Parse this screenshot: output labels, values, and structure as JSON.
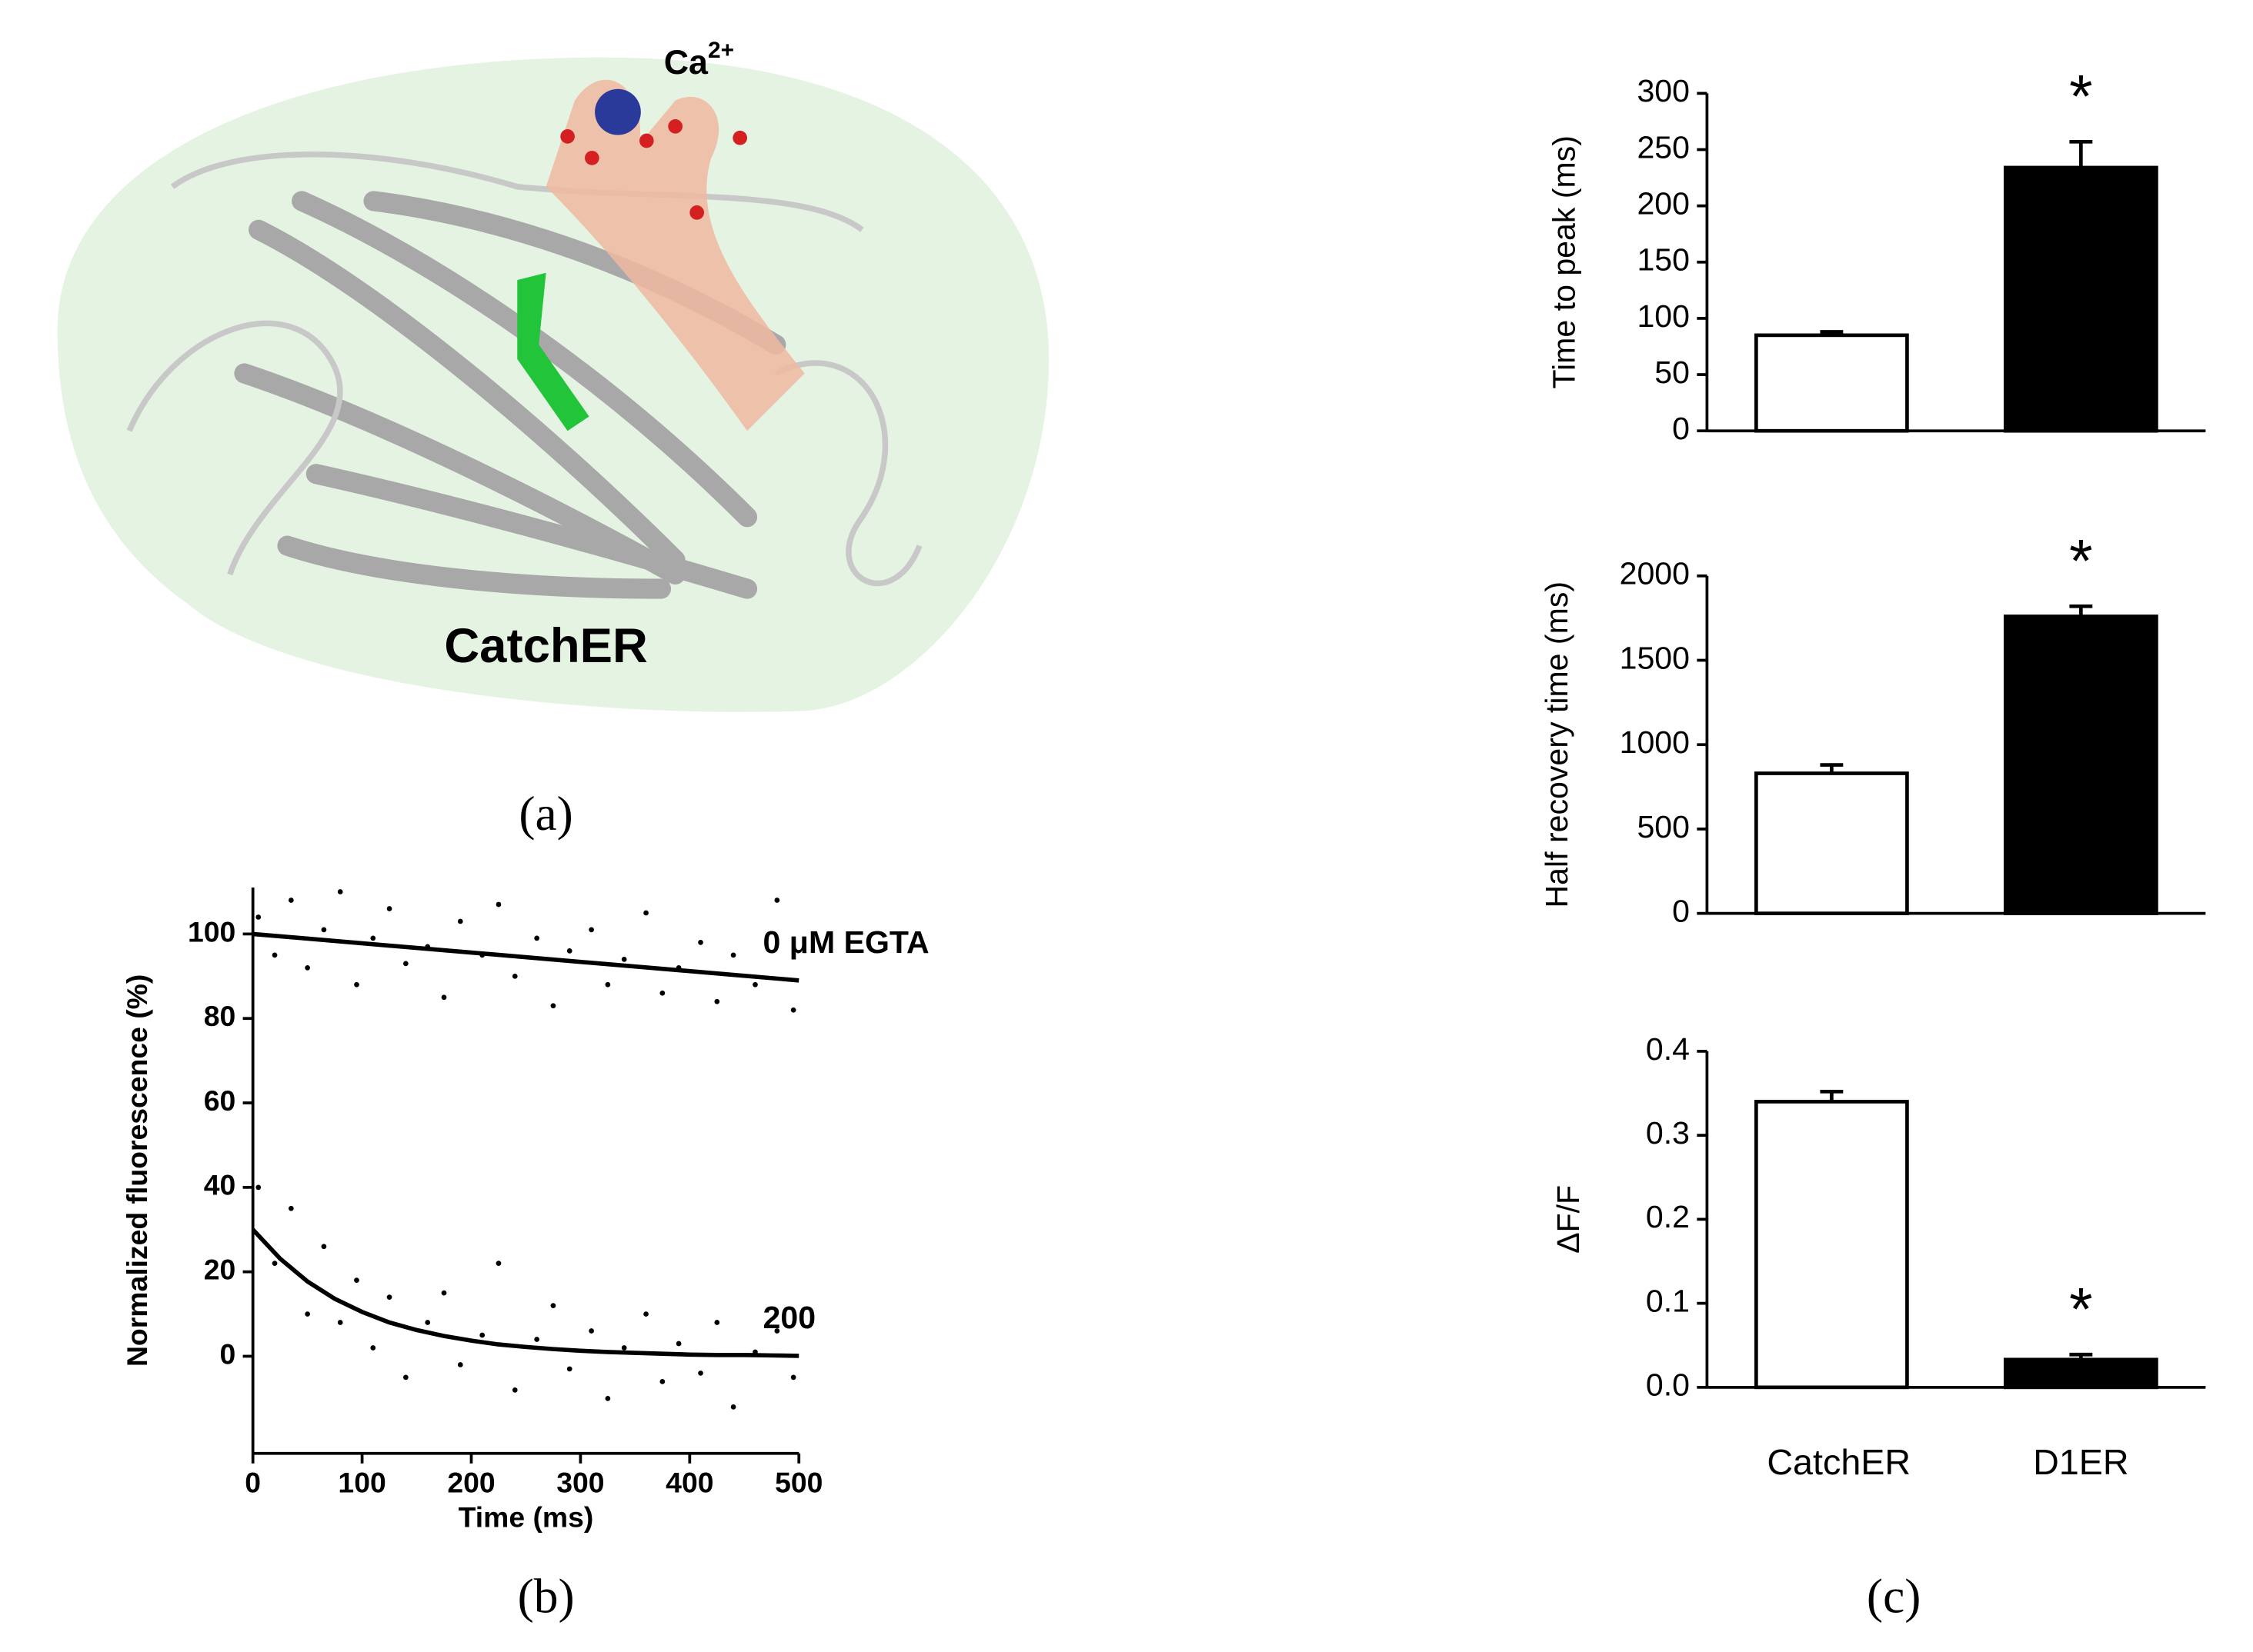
{
  "panel_labels": [
    "(a)",
    "(b)",
    "(c)"
  ],
  "structure": {
    "ion": "Ca",
    "ion_charge": "2+",
    "name": "CatchER"
  },
  "chart_data": [
    {
      "type": "scatter",
      "xlabel": "Time (ms)",
      "ylabel": "Normalized fluorescence (%)",
      "xlim": [
        0,
        500
      ],
      "xticks": [
        0,
        100,
        200,
        300,
        400,
        500
      ],
      "ylim": [
        -23,
        111
      ],
      "yticks": [
        0,
        20,
        40,
        60,
        80,
        100
      ],
      "series": [
        {
          "mode": "markers",
          "color": "#000000",
          "x": [
            5,
            20,
            35,
            50,
            65,
            80,
            95,
            110,
            125,
            140,
            160,
            175,
            190,
            210,
            225,
            240,
            260,
            275,
            290,
            310,
            325,
            340,
            360,
            375,
            390,
            410,
            425,
            440,
            460,
            480,
            495
          ],
          "values": [
            104,
            95,
            108,
            92,
            101,
            110,
            88,
            99,
            106,
            93,
            97,
            85,
            103,
            95,
            107,
            90,
            99,
            83,
            96,
            101,
            88,
            94,
            105,
            86,
            92,
            98,
            84,
            95,
            88,
            108,
            82
          ]
        },
        {
          "mode": "markers",
          "color": "#000000",
          "x": [
            5,
            20,
            35,
            50,
            65,
            80,
            95,
            110,
            125,
            140,
            160,
            175,
            190,
            210,
            225,
            240,
            260,
            275,
            290,
            310,
            325,
            340,
            360,
            375,
            390,
            410,
            425,
            440,
            460,
            480,
            495
          ],
          "values": [
            40,
            22,
            35,
            10,
            26,
            8,
            18,
            2,
            14,
            -5,
            8,
            15,
            -2,
            5,
            22,
            -8,
            4,
            12,
            -3,
            6,
            -10,
            2,
            10,
            -6,
            3,
            -4,
            8,
            -12,
            1,
            6,
            -5
          ]
        },
        {
          "mode": "line",
          "color": "#000000",
          "label": "0 μM EGTA",
          "x": [
            0,
            500
          ],
          "values": [
            100,
            89
          ]
        },
        {
          "mode": "line",
          "color": "#000000",
          "label": "200",
          "x": [
            0,
            25,
            50,
            75,
            100,
            125,
            150,
            175,
            200,
            225,
            250,
            275,
            300,
            325,
            350,
            375,
            400,
            425,
            450,
            475,
            500
          ],
          "values": [
            30,
            23.1,
            17.7,
            13.6,
            10.5,
            8.0,
            6.2,
            4.8,
            3.7,
            2.8,
            2.2,
            1.7,
            1.3,
            1.0,
            0.8,
            0.6,
            0.4,
            0.3,
            0.3,
            0.2,
            0.1
          ]
        }
      ]
    },
    {
      "type": "bar",
      "ylabel": "Time to peak (ms)",
      "categories": [
        null,
        null
      ],
      "values": [
        85,
        234
      ],
      "errors": [
        3,
        23
      ],
      "colors": [
        "#ffffff",
        "#000000"
      ],
      "annotations": [
        null,
        "*"
      ],
      "ylim": [
        0,
        300
      ],
      "yticks": [
        0,
        50,
        100,
        150,
        200,
        250,
        300
      ]
    },
    {
      "type": "bar",
      "ylabel": "Half recovery time (ms)",
      "categories": [
        null,
        null
      ],
      "values": [
        830,
        1760
      ],
      "errors": [
        50,
        60
      ],
      "colors": [
        "#ffffff",
        "#000000"
      ],
      "annotations": [
        null,
        "*"
      ],
      "ylim": [
        0,
        2000
      ],
      "yticks": [
        0,
        500,
        1000,
        1500,
        2000
      ]
    },
    {
      "type": "bar",
      "ylabel": "ΔF/F",
      "categories": [
        "CatchER",
        "D1ER"
      ],
      "values": [
        0.34,
        0.033
      ],
      "errors": [
        0.012,
        0.006
      ],
      "colors": [
        "#ffffff",
        "#000000"
      ],
      "annotations": [
        null,
        "*"
      ],
      "ylim": [
        0,
        0.4
      ],
      "yticks": [
        {
          "value": 0,
          "label": "0.0"
        },
        0.1,
        0.2,
        0.3,
        0.4
      ]
    }
  ]
}
